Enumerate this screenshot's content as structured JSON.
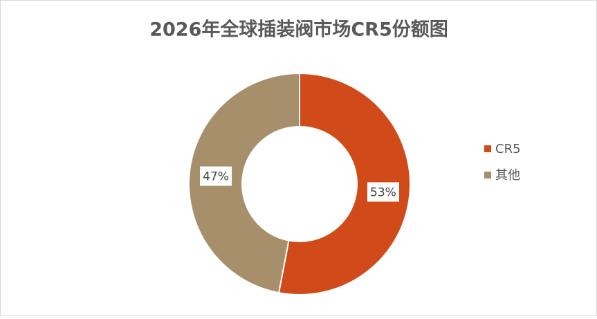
{
  "chart_data": {
    "type": "donut",
    "title": "2026年全球插装阀市场CR5份额图",
    "categories": [
      "CR5",
      "其他"
    ],
    "values": [
      53,
      47
    ],
    "value_labels": [
      "53%",
      "47%"
    ],
    "colors": [
      "#d14a19",
      "#a68f6a"
    ],
    "legend": "right"
  }
}
